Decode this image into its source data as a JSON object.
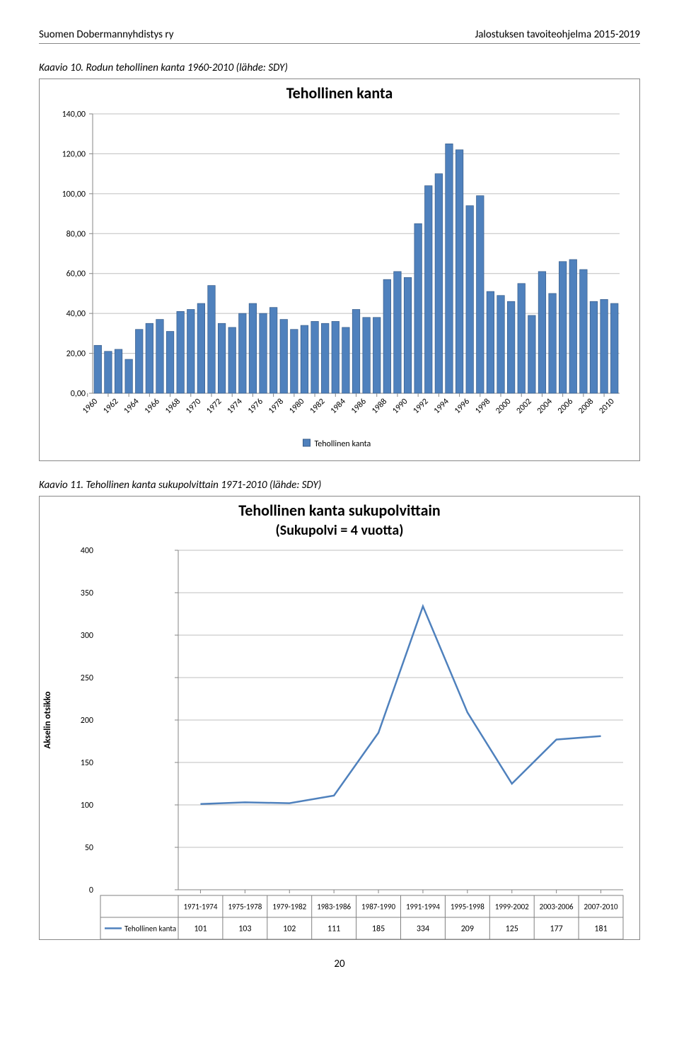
{
  "header": {
    "left": "Suomen Dobermannyhdistys ry",
    "right": "Jalostuksen tavoiteohjelma 2015-2019"
  },
  "page_number": "20",
  "caption1": "Kaavio 10. Rodun tehollinen kanta 1960-2010 (lähde: SDY)",
  "caption2": "Kaavio 11. Tehollinen kanta sukupolvittain 1971-2010 (lähde: SDY)",
  "chart1": {
    "title": "Tehollinen kanta",
    "type": "bar",
    "ylim": [
      0,
      140
    ],
    "ytick_step": 20,
    "yticks_labels": [
      "0,00",
      "20,00",
      "40,00",
      "60,00",
      "80,00",
      "100,00",
      "120,00",
      "140,00"
    ],
    "categories": [
      "1960",
      "1961",
      "1962",
      "1963",
      "1964",
      "1965",
      "1966",
      "1967",
      "1968",
      "1969",
      "1970",
      "1971",
      "1972",
      "1973",
      "1974",
      "1975",
      "1976",
      "1977",
      "1978",
      "1979",
      "1980",
      "1981",
      "1982",
      "1983",
      "1984",
      "1985",
      "1986",
      "1987",
      "1988",
      "1989",
      "1990",
      "1991",
      "1992",
      "1993",
      "1994",
      "1995",
      "1996",
      "1997",
      "1998",
      "1999",
      "2000",
      "2001",
      "2002",
      "2003",
      "2004",
      "2005",
      "2006",
      "2007",
      "2008",
      "2009",
      "2010"
    ],
    "x_label_stride": 2,
    "values": [
      24,
      21,
      22,
      17,
      32,
      35,
      37,
      31,
      41,
      42,
      45,
      54,
      35,
      33,
      40,
      45,
      40,
      43,
      37,
      32,
      34,
      36,
      35,
      36,
      33,
      42,
      38,
      38,
      57,
      61,
      58,
      85,
      104,
      110,
      125,
      122,
      94,
      99,
      51,
      49,
      46,
      55,
      39,
      61,
      50,
      66,
      67,
      62,
      46,
      47,
      45
    ],
    "bar_color": "#4f81bd",
    "bar_border": "#385d8a",
    "background_color": "#ffffff",
    "grid_color": "#bfbfbf",
    "axis_color": "#858585",
    "title_fontsize": 22,
    "axis_fontsize": 12,
    "legend_label": "Tehollinen kanta",
    "bar_width": 0.72
  },
  "chart2": {
    "title_line1": "Tehollinen kanta sukupolvittain",
    "title_line2": "(Sukupolvi = 4 vuotta)",
    "type": "line",
    "ylabel": "Akselin otsikko",
    "ylim": [
      0,
      400
    ],
    "ytick_step": 50,
    "yticks_labels": [
      "0",
      "50",
      "100",
      "150",
      "200",
      "250",
      "300",
      "350",
      "400"
    ],
    "categories": [
      "1971-1974",
      "1975-1978",
      "1979-1982",
      "1983-1986",
      "1987-1990",
      "1991-1994",
      "1995-1998",
      "1999-2002",
      "2003-2006",
      "2007-2010"
    ],
    "values": [
      101,
      103,
      102,
      111,
      185,
      334,
      209,
      125,
      177,
      181
    ],
    "series_label": "Tehollinen kanta",
    "line_color": "#4f81bd",
    "line_width": 2.5,
    "background_color": "#ffffff",
    "grid_color": "#bfbfbf",
    "axis_color": "#858585",
    "title_fontsize": 22,
    "axis_fontsize": 12,
    "table_border": "#808080"
  }
}
